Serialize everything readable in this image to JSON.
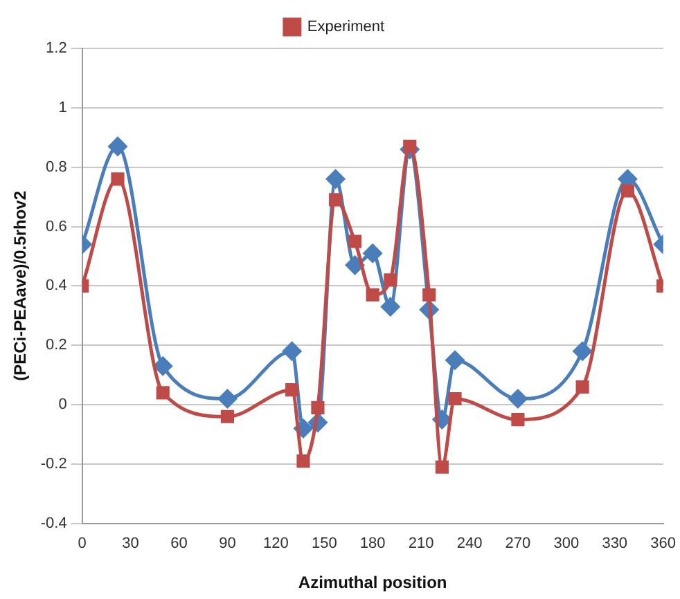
{
  "chart_data": {
    "type": "line",
    "xlabel": "Azimuthal position",
    "ylabel": "(PECi-PEAave)/0.5rhov2",
    "x": [
      0,
      22,
      50,
      90,
      130,
      137,
      146,
      157,
      169,
      180,
      191,
      203,
      215,
      223,
      231,
      270,
      310,
      338,
      360
    ],
    "series": [
      {
        "color": "#4a7ebb",
        "marker": "diamond",
        "values": [
          0.54,
          0.87,
          0.13,
          0.02,
          0.18,
          -0.08,
          -0.06,
          0.76,
          0.47,
          0.51,
          0.33,
          0.86,
          0.32,
          -0.05,
          0.15,
          0.02,
          0.18,
          0.76,
          0.54
        ]
      },
      {
        "name": "Experiment",
        "color": "#be4b48",
        "marker": "square",
        "values": [
          0.4,
          0.76,
          0.04,
          -0.04,
          0.05,
          -0.19,
          -0.01,
          0.69,
          0.55,
          0.37,
          0.42,
          0.87,
          0.37,
          -0.21,
          0.02,
          -0.05,
          0.06,
          0.72,
          0.4
        ]
      }
    ],
    "xlim": [
      0,
      360
    ],
    "xticks": [
      0,
      30,
      60,
      90,
      120,
      150,
      180,
      210,
      240,
      270,
      300,
      330,
      360
    ],
    "ylim": [
      -0.4,
      1.2
    ],
    "yticks": [
      -0.4,
      -0.2,
      0,
      0.2,
      0.4,
      0.6,
      0.8,
      1,
      1.2
    ],
    "grid": "y",
    "legend": "top"
  }
}
